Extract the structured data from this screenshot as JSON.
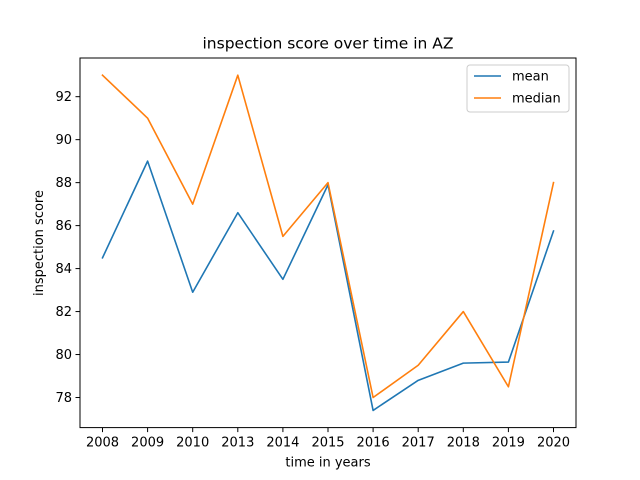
{
  "chart_data": {
    "type": "line",
    "title": "inspection score over time in AZ",
    "xlabel": "time in years",
    "ylabel": "inspection score",
    "categories": [
      "2008",
      "2009",
      "2010",
      "2013",
      "2014",
      "2015",
      "2016",
      "2017",
      "2018",
      "2019",
      "2020"
    ],
    "series": [
      {
        "name": "mean",
        "color": "#1f77b4",
        "values": [
          84.5,
          89.0,
          82.9,
          86.6,
          83.5,
          87.9,
          77.4,
          78.8,
          79.6,
          79.65,
          85.75
        ]
      },
      {
        "name": "median",
        "color": "#ff7f0e",
        "values": [
          93.0,
          91.0,
          87.0,
          93.0,
          85.5,
          88.0,
          78.0,
          79.5,
          82.0,
          78.5,
          88.0
        ]
      }
    ],
    "yticks": [
      78,
      80,
      82,
      84,
      86,
      88,
      90,
      92
    ],
    "ylim": [
      76.6,
      93.8
    ],
    "grid": false,
    "legend_position": "top-right"
  }
}
